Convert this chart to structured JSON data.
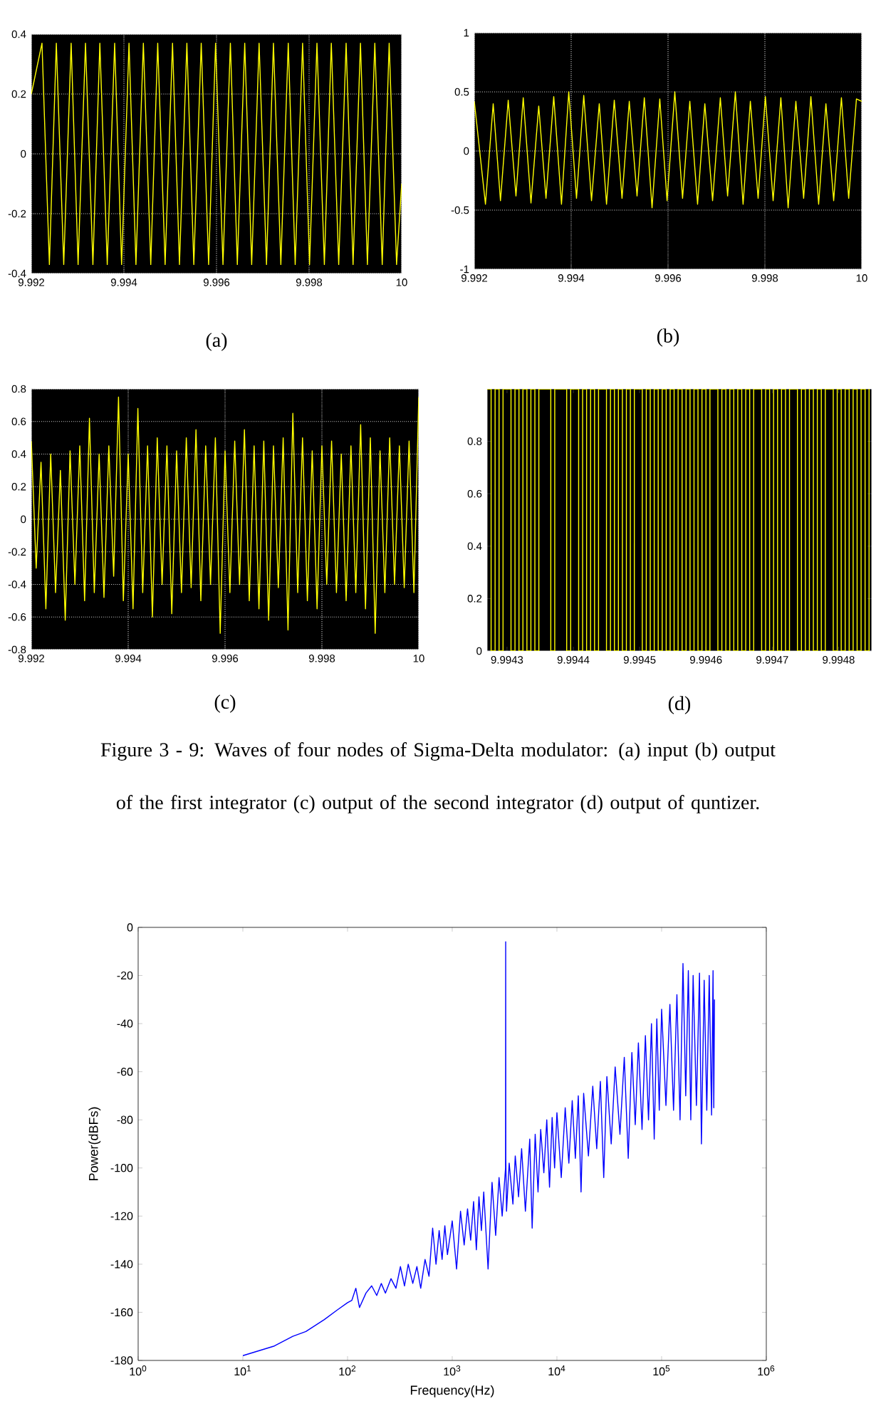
{
  "chart_data": [
    {
      "type": "line",
      "color": "#ffff00",
      "grid": true,
      "xlim": [
        9.992,
        10
      ],
      "ylim": [
        -0.4,
        0.4
      ],
      "xticks": [
        9.992,
        9.994,
        9.996,
        9.998,
        10
      ],
      "yticks": [
        -0.4,
        -0.2,
        0,
        0.2,
        0.4
      ],
      "annotations": [
        "(a)"
      ],
      "x": [
        9.992,
        9.99223,
        9.99239,
        9.99254,
        9.9927,
        9.99286,
        9.99301,
        9.99317,
        9.99333,
        9.99348,
        9.99364,
        9.9938,
        9.99395,
        9.99411,
        9.99426,
        9.99442,
        9.99458,
        9.99473,
        9.99489,
        9.99505,
        9.9952,
        9.99536,
        9.99551,
        9.99567,
        9.99583,
        9.99598,
        9.99614,
        9.9963,
        9.99645,
        9.99661,
        9.99676,
        9.99692,
        9.99708,
        9.99723,
        9.99739,
        9.99755,
        9.9977,
        9.99786,
        9.99801,
        9.99817,
        9.99833,
        9.99848,
        9.99864,
        9.9988,
        9.99895,
        9.99911,
        9.99926,
        9.99942,
        9.99958,
        9.99973,
        9.99989,
        10
      ],
      "values": [
        0.2,
        0.37,
        -0.37,
        0.37,
        -0.37,
        0.37,
        -0.37,
        0.37,
        -0.37,
        0.37,
        -0.37,
        0.37,
        -0.37,
        0.37,
        -0.37,
        0.37,
        -0.37,
        0.37,
        -0.37,
        0.37,
        -0.37,
        0.37,
        -0.37,
        0.37,
        -0.37,
        0.37,
        -0.37,
        0.37,
        -0.37,
        0.37,
        -0.37,
        0.37,
        -0.37,
        0.37,
        -0.37,
        0.37,
        -0.37,
        0.37,
        -0.37,
        0.37,
        -0.37,
        0.37,
        -0.37,
        0.37,
        -0.37,
        0.37,
        -0.37,
        0.37,
        -0.37,
        0.37,
        -0.37,
        -0.1
      ]
    },
    {
      "type": "line",
      "color": "#ffff00",
      "grid": true,
      "xlim": [
        9.992,
        10
      ],
      "ylim": [
        -1,
        1
      ],
      "xticks": [
        9.992,
        9.994,
        9.996,
        9.998,
        10
      ],
      "yticks": [
        -1,
        -0.5,
        0,
        0.5,
        1
      ],
      "annotations": [
        "(b)"
      ],
      "x": [
        9.992,
        9.99223,
        9.99239,
        9.99254,
        9.9927,
        9.99286,
        9.99301,
        9.99317,
        9.99333,
        9.99348,
        9.99364,
        9.9938,
        9.99395,
        9.99411,
        9.99426,
        9.99442,
        9.99458,
        9.99473,
        9.99489,
        9.99505,
        9.9952,
        9.99536,
        9.99551,
        9.99567,
        9.99583,
        9.99598,
        9.99614,
        9.9963,
        9.99645,
        9.99661,
        9.99676,
        9.99692,
        9.99708,
        9.99723,
        9.99739,
        9.99755,
        9.9977,
        9.99786,
        9.99801,
        9.99817,
        9.99833,
        9.99848,
        9.99864,
        9.9988,
        9.99895,
        9.99911,
        9.99926,
        9.99942,
        9.99958,
        9.99973,
        9.99989,
        10
      ],
      "values": [
        0.42,
        -0.45,
        0.4,
        -0.42,
        0.43,
        -0.38,
        0.45,
        -0.44,
        0.38,
        -0.4,
        0.46,
        -0.45,
        0.5,
        -0.4,
        0.47,
        -0.42,
        0.4,
        -0.45,
        0.43,
        -0.4,
        0.42,
        -0.38,
        0.45,
        -0.48,
        0.44,
        -0.42,
        0.5,
        -0.4,
        0.42,
        -0.45,
        0.4,
        -0.42,
        0.45,
        -0.38,
        0.5,
        -0.45,
        0.42,
        -0.4,
        0.46,
        -0.42,
        0.45,
        -0.48,
        0.42,
        -0.4,
        0.46,
        -0.45,
        0.4,
        -0.42,
        0.45,
        -0.4,
        0.44,
        0.42
      ]
    },
    {
      "type": "line",
      "color": "#ffff00",
      "grid": true,
      "xlim": [
        9.992,
        10
      ],
      "ylim": [
        -0.8,
        0.8
      ],
      "xticks": [
        9.992,
        9.994,
        9.996,
        9.998,
        10
      ],
      "yticks": [
        -0.8,
        -0.6,
        -0.4,
        -0.2,
        0,
        0.2,
        0.4,
        0.6,
        0.8
      ],
      "annotations": [
        "(c)"
      ],
      "x": [
        9.992,
        9.9921,
        9.9922,
        9.9923,
        9.9924,
        9.9925,
        9.9926,
        9.9927,
        9.9928,
        9.9929,
        9.993,
        9.9931,
        9.9932,
        9.9933,
        9.9934,
        9.9935,
        9.9936,
        9.9937,
        9.9938,
        9.9939,
        9.994,
        9.9941,
        9.9942,
        9.9943,
        9.9944,
        9.9945,
        9.9946,
        9.9947,
        9.9948,
        9.9949,
        9.995,
        9.9951,
        9.9952,
        9.9953,
        9.9954,
        9.9955,
        9.9956,
        9.9957,
        9.9958,
        9.9959,
        9.996,
        9.9961,
        9.9962,
        9.9963,
        9.9964,
        9.9965,
        9.9966,
        9.9967,
        9.9968,
        9.9969,
        9.997,
        9.9971,
        9.9972,
        9.9973,
        9.9974,
        9.9975,
        9.9976,
        9.9977,
        9.9978,
        9.9979,
        9.998,
        9.9981,
        9.9982,
        9.9983,
        9.9984,
        9.9985,
        9.9986,
        9.9987,
        9.9988,
        9.9989,
        9.999,
        9.9991,
        9.9992,
        9.9993,
        9.9994,
        9.9995,
        9.9996,
        9.9997,
        9.9998,
        9.9999,
        10
      ],
      "values": [
        0.48,
        -0.3,
        0.35,
        -0.55,
        0.4,
        -0.45,
        0.3,
        -0.62,
        0.42,
        -0.4,
        0.45,
        -0.5,
        0.62,
        -0.45,
        0.4,
        -0.48,
        0.45,
        -0.35,
        0.75,
        -0.5,
        0.4,
        -0.55,
        0.68,
        -0.45,
        0.45,
        -0.6,
        0.5,
        -0.4,
        0.45,
        -0.58,
        0.42,
        -0.45,
        0.5,
        -0.42,
        0.55,
        -0.5,
        0.45,
        -0.4,
        0.5,
        -0.7,
        0.42,
        -0.45,
        0.48,
        -0.4,
        0.55,
        -0.5,
        0.45,
        -0.55,
        0.48,
        -0.62,
        0.45,
        -0.42,
        0.5,
        -0.68,
        0.65,
        -0.45,
        0.5,
        -0.5,
        0.42,
        -0.55,
        0.45,
        -0.4,
        0.48,
        -0.45,
        0.4,
        -0.5,
        0.45,
        -0.45,
        0.58,
        -0.55,
        0.5,
        -0.7,
        0.42,
        -0.45,
        0.5,
        -0.4,
        0.45,
        -0.42,
        0.48,
        -0.45,
        0.75
      ]
    },
    {
      "type": "step",
      "color": "#ffff00",
      "xlim": [
        9.99427,
        9.99485
      ],
      "ylim": [
        0,
        1
      ],
      "xticks": [
        9.9943,
        9.9944,
        9.9945,
        9.9946,
        9.9947,
        9.9948
      ],
      "yticks": [
        0,
        0.2,
        0.4,
        0.6,
        0.8
      ],
      "annotations": [
        "(d)",
        "Figure 3 - 9: Waves of four nodes of Sigma-Delta modulator: (a) input (b) output of the first integrator (c) output of the second integrator (d) output of quntizer."
      ],
      "x": [
        9.99427,
        9.994276,
        9.994282,
        9.994288,
        9.994294,
        9.9943,
        9.994306,
        9.994312,
        9.994318,
        9.994324,
        9.99433,
        9.994336,
        9.994342,
        9.994348,
        9.994354,
        9.99436,
        9.994366,
        9.994372,
        9.994378,
        9.994384,
        9.99439,
        9.994396,
        9.994402,
        9.994408,
        9.994414,
        9.99442,
        9.994426,
        9.994432,
        9.994438,
        9.994444,
        9.99445,
        9.994456,
        9.994462,
        9.994468,
        9.994474,
        9.99448,
        9.994486,
        9.994492,
        9.994498,
        9.994504,
        9.99451,
        9.994516,
        9.994522,
        9.994528,
        9.994534,
        9.99454,
        9.994546,
        9.994552,
        9.994558,
        9.994564,
        9.99457,
        9.994576,
        9.994582,
        9.994588,
        9.994594,
        9.9946,
        9.994606,
        9.994612,
        9.994618,
        9.994624,
        9.99463,
        9.994636,
        9.994642,
        9.994648,
        9.994654,
        9.99466,
        9.994666,
        9.994672,
        9.994678,
        9.994684,
        9.99469,
        9.994696,
        9.994702,
        9.994708,
        9.994714,
        9.99472,
        9.994726,
        9.994732,
        9.994738,
        9.994744,
        9.99475,
        9.994756,
        9.994762,
        9.994768,
        9.994774,
        9.99478,
        9.994786,
        9.994792,
        9.994798,
        9.994804,
        9.99481,
        9.994816,
        9.994822,
        9.994828,
        9.994834,
        9.99484,
        9.994846
      ],
      "values": [
        1,
        0,
        1,
        0,
        1,
        1,
        0,
        1,
        0,
        1,
        0,
        1,
        0,
        1,
        1,
        1,
        0,
        1,
        1,
        1,
        0,
        1,
        1,
        0,
        1,
        0,
        1,
        0,
        1,
        1,
        0,
        1,
        0,
        1,
        0,
        1,
        0,
        1,
        1,
        0,
        1,
        0,
        1,
        0,
        1,
        0,
        1,
        0,
        1,
        0,
        1,
        0,
        1,
        0,
        1,
        0,
        1,
        1,
        0,
        1,
        0,
        1,
        0,
        1,
        0,
        1,
        0,
        1,
        1,
        0,
        1,
        0,
        1,
        0,
        1,
        0,
        1,
        1,
        0,
        1,
        0,
        1,
        0,
        1,
        0,
        1,
        1,
        0,
        1,
        0,
        1,
        0,
        1,
        0,
        1,
        0,
        1
      ]
    },
    {
      "type": "line",
      "color": "#0000ff",
      "log": "x",
      "xlabel": "Frequency(Hz)",
      "ylabel": "Power(dBFs)",
      "xlim": [
        1,
        1000000
      ],
      "ylim": [
        -180,
        0
      ],
      "xticks": [
        {
          "value": 1,
          "label": "10$^{0}$"
        },
        {
          "value": 10,
          "label": "10$^{1}$"
        },
        {
          "value": 100,
          "label": "10$^{2}$"
        },
        {
          "value": 1000,
          "label": "10$^{3}$"
        },
        {
          "value": 10000,
          "label": "10$^{4}$"
        },
        {
          "value": 100000,
          "label": "10$^{5}$"
        },
        {
          "value": 1000000,
          "label": "10$^{6}$"
        }
      ],
      "yticks": [
        -180,
        -160,
        -140,
        -120,
        -100,
        -80,
        -60,
        -40,
        -20,
        0
      ],
      "x": [
        10,
        20,
        30,
        40,
        60,
        80,
        100,
        110,
        120,
        130,
        150,
        170,
        190,
        210,
        230,
        260,
        290,
        320,
        350,
        380,
        420,
        460,
        500,
        550,
        600,
        650,
        700,
        750,
        800,
        850,
        900,
        1000,
        1100,
        1200,
        1300,
        1400,
        1500,
        1600,
        1700,
        1800,
        1900,
        2000,
        2200,
        2400,
        2600,
        2800,
        3000,
        3230,
        3240,
        3250,
        3300,
        3500,
        3800,
        4000,
        4300,
        4600,
        5000,
        5500,
        5800,
        6200,
        6600,
        7000,
        7500,
        8000,
        8500,
        9000,
        9500,
        10000,
        11000,
        12000,
        13000,
        14000,
        15000,
        16000,
        17000,
        18000,
        20000,
        22000,
        24000,
        26000,
        28000,
        30000,
        33000,
        36000,
        40000,
        44000,
        48000,
        52000,
        56000,
        60000,
        65000,
        70000,
        75000,
        80000,
        85000,
        90000,
        95000,
        100000,
        110000,
        120000,
        130000,
        140000,
        150000,
        160000,
        170000,
        180000,
        190000,
        200000,
        215000,
        230000,
        240000,
        255000,
        270000,
        285000,
        300000,
        310000,
        315000,
        320000
      ],
      "values": [
        -178,
        -174,
        -170,
        -168,
        -163,
        -159,
        -156,
        -155,
        -150,
        -158,
        -152,
        -149,
        -153,
        -148,
        -152,
        -146,
        -150,
        -141,
        -149,
        -140,
        -148,
        -141,
        -150,
        -138,
        -145,
        -125,
        -140,
        -126,
        -138,
        -124,
        -136,
        -122,
        -142,
        -118,
        -132,
        -117,
        -130,
        -114,
        -134,
        -112,
        -126,
        -110,
        -142,
        -106,
        -128,
        -104,
        -120,
        -100,
        -6,
        -96,
        -118,
        -98,
        -115,
        -95,
        -112,
        -92,
        -118,
        -88,
        -125,
        -86,
        -110,
        -84,
        -102,
        -80,
        -108,
        -79,
        -100,
        -77,
        -104,
        -75,
        -98,
        -72,
        -96,
        -70,
        -110,
        -69,
        -95,
        -66,
        -92,
        -64,
        -104,
        -62,
        -90,
        -58,
        -86,
        -54,
        -96,
        -52,
        -82,
        -48,
        -84,
        -45,
        -80,
        -40,
        -88,
        -38,
        -76,
        -34,
        -74,
        -32,
        -76,
        -28,
        -80,
        -15,
        -70,
        -18,
        -80,
        -20,
        -74,
        -19,
        -90,
        -22,
        -76,
        -20,
        -78,
        -18,
        -75,
        -30
      ]
    }
  ]
}
